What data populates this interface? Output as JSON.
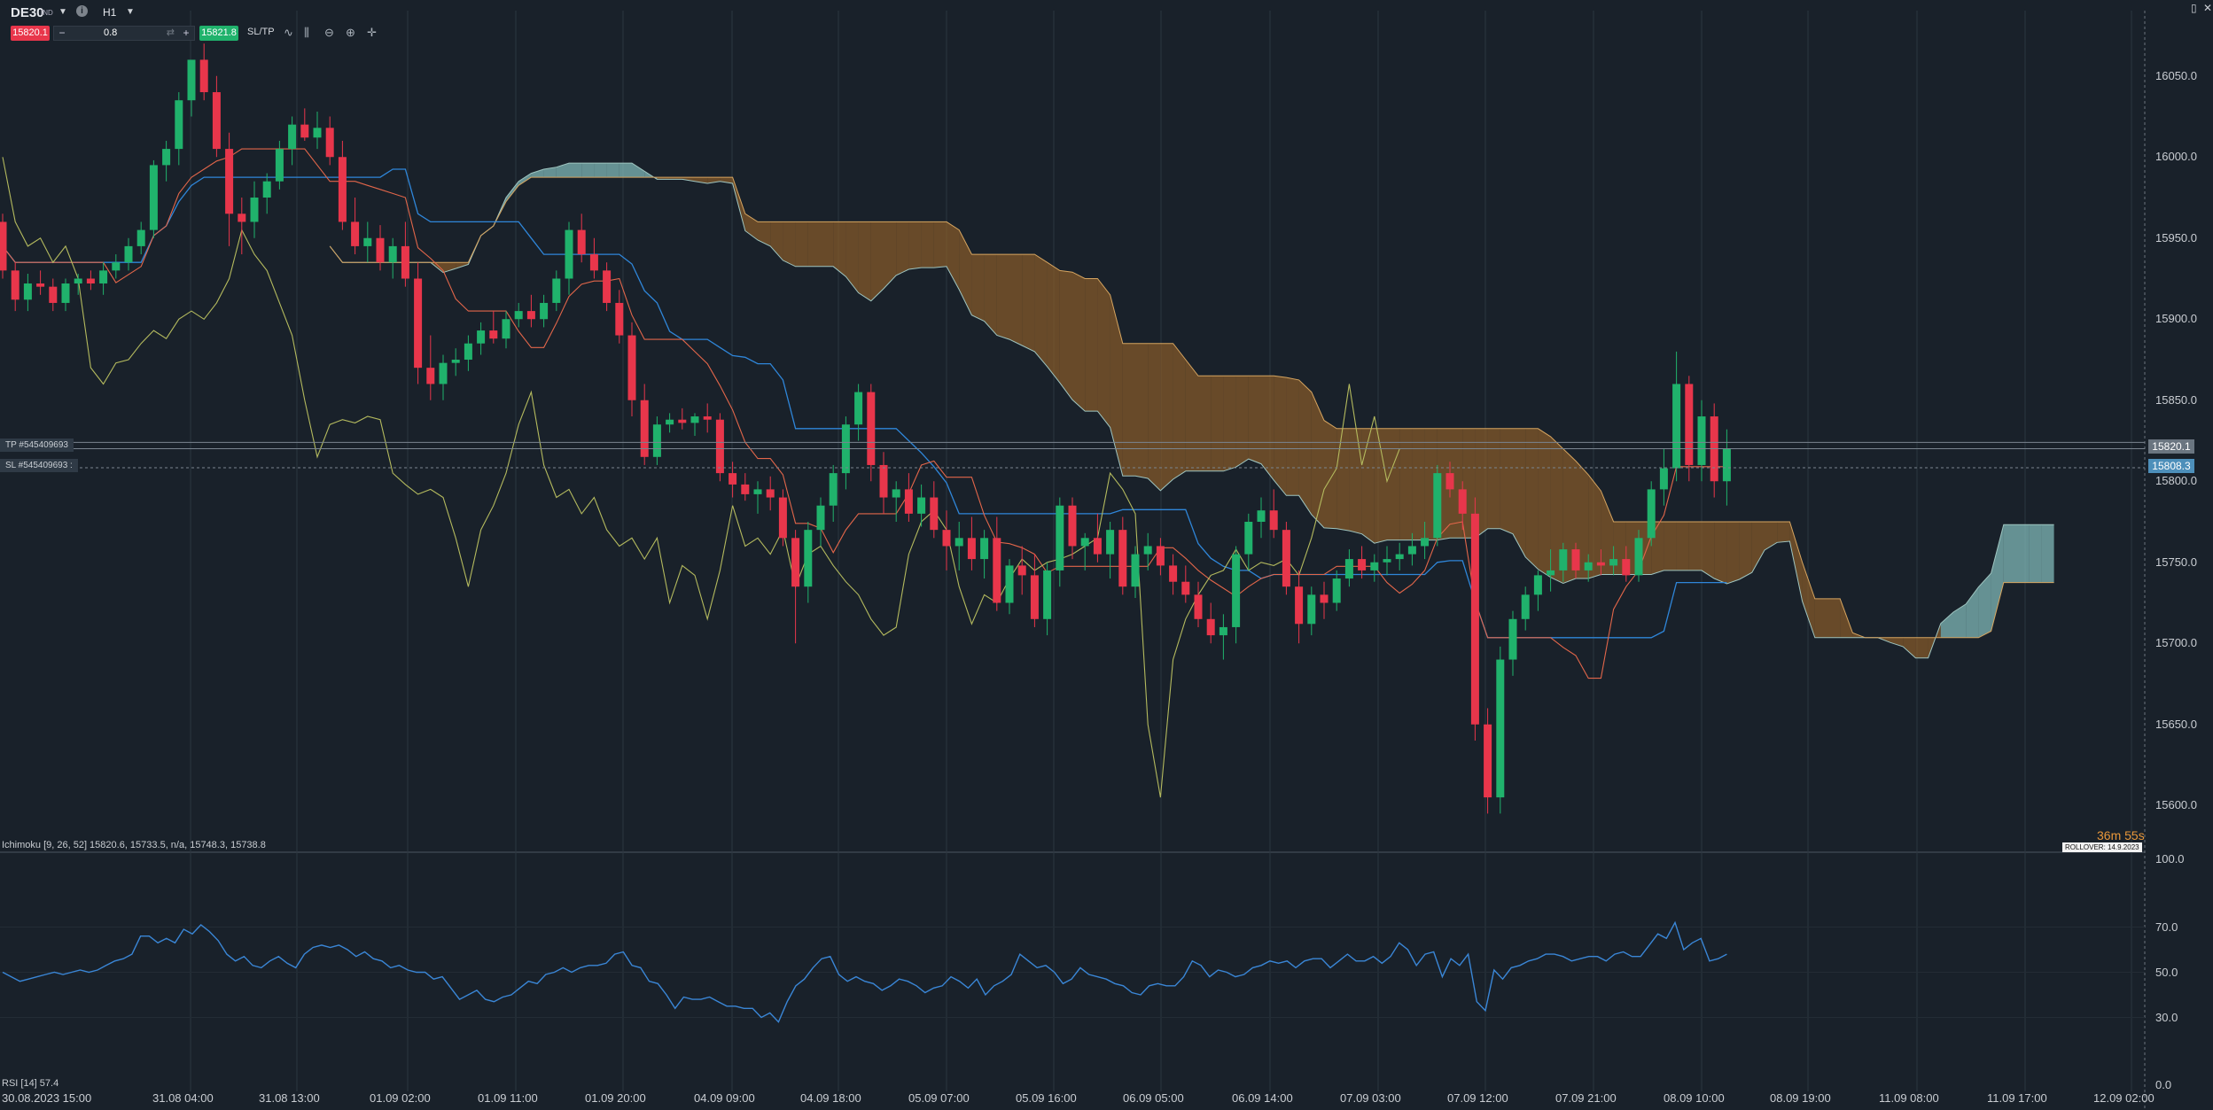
{
  "toolbar": {
    "symbol": "DE30",
    "symbol_badge": "IND",
    "timeframe": "H1",
    "sell_price": "15820.1",
    "buy_price": "15821.8",
    "volume": "0.8",
    "sltp_label": "SL/TP",
    "minus": "−",
    "plus": "+",
    "info": "i",
    "refresh": "⇄"
  },
  "price_axis": [
    "16050.0",
    "16000.0",
    "15950.0",
    "15900.0",
    "15850.0",
    "15800.0",
    "15750.0",
    "15700.0",
    "15650.0",
    "15600.0"
  ],
  "rsi_axis": [
    "100.0",
    "70.0",
    "50.0",
    "30.0",
    "0.0"
  ],
  "time_axis": [
    "30.08.2023 15:00",
    "31.08 04:00",
    "31.08 13:00",
    "01.09 02:00",
    "01.09 11:00",
    "01.09 20:00",
    "04.09 09:00",
    "04.09 18:00",
    "05.09 07:00",
    "05.09 16:00",
    "06.09 05:00",
    "06.09 14:00",
    "07.09 03:00",
    "07.09 12:00",
    "07.09 21:00",
    "08.09 10:00",
    "08.09 19:00",
    "11.09 08:00",
    "11.09 17:00",
    "12.09 02:00"
  ],
  "price_labels": {
    "current_sell": "15820.1",
    "sl_line": "15808.3"
  },
  "orders": {
    "tp": "TP  #545409693",
    "sl": "SL  #545409693 :"
  },
  "ichimoku_legend": "Ichimoku [9, 26, 52] 15820.6, 15733.5, n/a, 15748.3, 15738.8",
  "rsi_legend": "RSI [14] 57.4",
  "timer": "36m 55s",
  "rollover": "ROLLOVER: 14.9.2023",
  "colors": {
    "background": "#19212a",
    "bull": "#20b26c",
    "bear": "#e8364b",
    "tenkan": "#e2664a",
    "kijun": "#2f86d9",
    "chikou": "#b4ba5e",
    "cloud_bull": "#7fb7b7",
    "cloud_bear": "#8a5d2a",
    "rsi": "#3a86d6"
  },
  "chart_data": {
    "type": "candlestick",
    "price_range": [
      15575,
      16075
    ],
    "rsi_range": [
      0,
      100
    ],
    "ohlc_note": "hourly candles, approx. [open, high, low, close]",
    "candles": [
      [
        15960,
        15965,
        15925,
        15930
      ],
      [
        15930,
        15935,
        15905,
        15912
      ],
      [
        15912,
        15928,
        15905,
        15922
      ],
      [
        15922,
        15930,
        15915,
        15920
      ],
      [
        15920,
        15925,
        15905,
        15910
      ],
      [
        15910,
        15925,
        15905,
        15922
      ],
      [
        15922,
        15928,
        15915,
        15925
      ],
      [
        15925,
        15930,
        15918,
        15922
      ],
      [
        15922,
        15935,
        15915,
        15930
      ],
      [
        15930,
        15940,
        15925,
        15935
      ],
      [
        15935,
        15950,
        15930,
        15945
      ],
      [
        15945,
        15960,
        15940,
        15955
      ],
      [
        15955,
        15998,
        15950,
        15995
      ],
      [
        15995,
        16010,
        15985,
        16005
      ],
      [
        16005,
        16040,
        15995,
        16035
      ],
      [
        16035,
        16060,
        16025,
        16060
      ],
      [
        16060,
        16070,
        16035,
        16040
      ],
      [
        16040,
        16050,
        16000,
        16005
      ],
      [
        16005,
        16015,
        15945,
        15965
      ],
      [
        15965,
        15975,
        15940,
        15960
      ],
      [
        15960,
        15985,
        15950,
        15975
      ],
      [
        15975,
        15990,
        15965,
        15985
      ],
      [
        15985,
        16010,
        15980,
        16005
      ],
      [
        16005,
        16025,
        15995,
        16020
      ],
      [
        16020,
        16030,
        16010,
        16012
      ],
      [
        16012,
        16028,
        16005,
        16018
      ],
      [
        16018,
        16025,
        15995,
        16000
      ],
      [
        16000,
        16010,
        15955,
        15960
      ],
      [
        15960,
        15975,
        15940,
        15945
      ],
      [
        15945,
        15960,
        15935,
        15950
      ],
      [
        15950,
        15958,
        15930,
        15935
      ],
      [
        15935,
        15950,
        15925,
        15945
      ],
      [
        15945,
        15960,
        15920,
        15925
      ],
      [
        15925,
        15935,
        15860,
        15870
      ],
      [
        15870,
        15890,
        15850,
        15860
      ],
      [
        15860,
        15878,
        15850,
        15873
      ],
      [
        15873,
        15882,
        15865,
        15875
      ],
      [
        15875,
        15890,
        15868,
        15885
      ],
      [
        15885,
        15898,
        15878,
        15893
      ],
      [
        15893,
        15905,
        15885,
        15888
      ],
      [
        15888,
        15905,
        15882,
        15900
      ],
      [
        15900,
        15910,
        15895,
        15905
      ],
      [
        15905,
        15915,
        15895,
        15900
      ],
      [
        15900,
        15915,
        15895,
        15910
      ],
      [
        15910,
        15930,
        15905,
        15925
      ],
      [
        15925,
        15960,
        15915,
        15955
      ],
      [
        15955,
        15965,
        15935,
        15940
      ],
      [
        15940,
        15950,
        15925,
        15930
      ],
      [
        15930,
        15935,
        15905,
        15910
      ],
      [
        15910,
        15918,
        15885,
        15890
      ],
      [
        15890,
        15898,
        15840,
        15850
      ],
      [
        15850,
        15860,
        15810,
        15815
      ],
      [
        15815,
        15840,
        15810,
        15835
      ],
      [
        15835,
        15842,
        15830,
        15838
      ],
      [
        15838,
        15845,
        15832,
        15836
      ],
      [
        15836,
        15842,
        15828,
        15840
      ],
      [
        15840,
        15848,
        15830,
        15838
      ],
      [
        15838,
        15842,
        15800,
        15805
      ],
      [
        15805,
        15812,
        15790,
        15798
      ],
      [
        15798,
        15805,
        15788,
        15792
      ],
      [
        15792,
        15800,
        15780,
        15795
      ],
      [
        15795,
        15803,
        15782,
        15790
      ],
      [
        15790,
        15795,
        15760,
        15765
      ],
      [
        15765,
        15770,
        15700,
        15735
      ],
      [
        15735,
        15775,
        15725,
        15770
      ],
      [
        15770,
        15790,
        15760,
        15785
      ],
      [
        15785,
        15810,
        15775,
        15805
      ],
      [
        15805,
        15840,
        15795,
        15835
      ],
      [
        15835,
        15860,
        15825,
        15855
      ],
      [
        15855,
        15860,
        15800,
        15810
      ],
      [
        15810,
        15818,
        15780,
        15790
      ],
      [
        15790,
        15800,
        15775,
        15795
      ],
      [
        15795,
        15805,
        15775,
        15780
      ],
      [
        15780,
        15798,
        15772,
        15790
      ],
      [
        15790,
        15800,
        15765,
        15770
      ],
      [
        15770,
        15782,
        15745,
        15760
      ],
      [
        15760,
        15775,
        15745,
        15765
      ],
      [
        15765,
        15778,
        15745,
        15752
      ],
      [
        15752,
        15770,
        15740,
        15765
      ],
      [
        15765,
        15778,
        15720,
        15725
      ],
      [
        15725,
        15752,
        15718,
        15748
      ],
      [
        15748,
        15760,
        15730,
        15742
      ],
      [
        15742,
        15755,
        15710,
        15715
      ],
      [
        15715,
        15750,
        15705,
        15745
      ],
      [
        15745,
        15790,
        15735,
        15785
      ],
      [
        15785,
        15790,
        15752,
        15760
      ],
      [
        15760,
        15768,
        15745,
        15765
      ],
      [
        15765,
        15780,
        15750,
        15755
      ],
      [
        15755,
        15775,
        15740,
        15770
      ],
      [
        15770,
        15778,
        15730,
        15735
      ],
      [
        15735,
        15760,
        15728,
        15755
      ],
      [
        15755,
        15768,
        15745,
        15760
      ],
      [
        15760,
        15765,
        15742,
        15748
      ],
      [
        15748,
        15755,
        15730,
        15738
      ],
      [
        15738,
        15748,
        15725,
        15730
      ],
      [
        15730,
        15738,
        15710,
        15715
      ],
      [
        15715,
        15725,
        15700,
        15705
      ],
      [
        15705,
        15718,
        15690,
        15710
      ],
      [
        15710,
        15760,
        15700,
        15755
      ],
      [
        15755,
        15780,
        15745,
        15775
      ],
      [
        15775,
        15790,
        15765,
        15782
      ],
      [
        15782,
        15795,
        15765,
        15770
      ],
      [
        15770,
        15775,
        15730,
        15735
      ],
      [
        15735,
        15745,
        15700,
        15712
      ],
      [
        15712,
        15735,
        15705,
        15730
      ],
      [
        15730,
        15738,
        15715,
        15725
      ],
      [
        15725,
        15745,
        15720,
        15740
      ],
      [
        15740,
        15758,
        15735,
        15752
      ],
      [
        15752,
        15760,
        15740,
        15745
      ],
      [
        15745,
        15755,
        15738,
        15750
      ],
      [
        15750,
        15760,
        15742,
        15752
      ],
      [
        15752,
        15762,
        15745,
        15755
      ],
      [
        15755,
        15768,
        15748,
        15760
      ],
      [
        15760,
        15775,
        15752,
        15765
      ],
      [
        15765,
        15810,
        15760,
        15805
      ],
      [
        15805,
        15812,
        15790,
        15795
      ],
      [
        15795,
        15800,
        15770,
        15780
      ],
      [
        15780,
        15790,
        15640,
        15650
      ],
      [
        15650,
        15660,
        15595,
        15605
      ],
      [
        15605,
        15698,
        15595,
        15690
      ],
      [
        15690,
        15720,
        15680,
        15715
      ],
      [
        15715,
        15735,
        15708,
        15730
      ],
      [
        15730,
        15745,
        15720,
        15742
      ],
      [
        15742,
        15758,
        15732,
        15745
      ],
      [
        15745,
        15762,
        15738,
        15758
      ],
      [
        15758,
        15762,
        15740,
        15745
      ],
      [
        15745,
        15755,
        15738,
        15750
      ],
      [
        15750,
        15758,
        15742,
        15748
      ],
      [
        15748,
        15760,
        15742,
        15752
      ],
      [
        15752,
        15760,
        15738,
        15742
      ],
      [
        15742,
        15770,
        15738,
        15765
      ],
      [
        15765,
        15800,
        15760,
        15795
      ],
      [
        15795,
        15820,
        15785,
        15808
      ],
      [
        15808,
        15880,
        15800,
        15860
      ],
      [
        15860,
        15865,
        15800,
        15810
      ],
      [
        15810,
        15850,
        15800,
        15840
      ],
      [
        15840,
        15848,
        15790,
        15800
      ],
      [
        15800,
        15832,
        15785,
        15820
      ]
    ],
    "rsi": [
      50,
      48,
      46,
      47,
      48,
      49,
      50,
      49,
      50,
      51,
      50,
      51,
      53,
      55,
      56,
      58,
      66,
      66,
      63,
      65,
      63,
      69,
      67,
      71,
      68,
      64,
      58,
      55,
      57,
      53,
      52,
      55,
      57,
      54,
      52,
      58,
      61,
      62,
      61,
      62,
      60,
      57,
      59,
      56,
      55,
      52,
      53,
      51,
      50,
      50,
      47,
      48,
      43,
      38,
      40,
      42,
      38,
      37,
      39,
      40,
      43,
      46,
      45,
      49,
      50,
      52,
      50,
      52,
      53,
      53,
      54,
      58,
      59,
      53,
      52,
      46,
      45,
      40,
      34,
      39,
      38,
      38,
      39,
      37,
      35,
      35,
      34,
      34,
      30,
      32,
      28,
      37,
      44,
      47,
      52,
      56,
      57,
      49,
      46,
      48,
      46,
      45,
      42,
      44,
      47,
      46,
      44,
      41,
      43,
      44,
      48,
      46,
      43,
      47,
      40,
      44,
      46,
      49,
      58,
      55,
      52,
      53,
      50,
      45,
      47,
      52,
      49,
      48,
      47,
      45,
      44,
      41,
      40,
      44,
      45,
      44,
      44,
      48,
      55,
      53,
      48,
      51,
      50,
      48,
      49,
      52,
      53,
      55,
      54,
      55,
      52,
      55,
      56,
      56,
      52,
      55,
      58,
      55,
      55,
      57,
      54,
      57,
      63,
      60,
      53,
      58,
      59,
      48,
      56,
      53,
      58,
      37,
      33,
      51,
      47,
      52,
      53,
      55,
      56,
      58,
      58,
      57,
      55,
      56,
      57,
      57,
      55,
      58,
      59,
      57,
      57,
      62,
      67,
      65,
      72,
      60,
      63,
      65,
      55,
      56,
      58
    ]
  }
}
